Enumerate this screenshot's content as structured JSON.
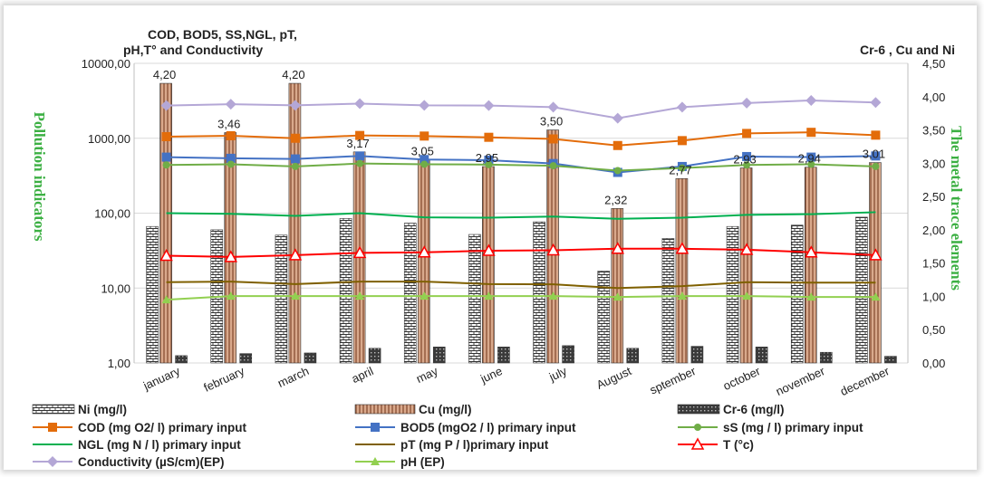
{
  "chart_data": {
    "type": "bar",
    "title_left": "COD, BOD5, SS,NGL, pT, pH,T° and Conductivity",
    "title_right": "Cr-6 , Cu and Ni",
    "ylabel_left": "Pollution indicators",
    "ylabel_right": "The metal trace elements",
    "left_axis": {
      "scale": "log",
      "ylim": [
        1,
        10000
      ],
      "ticks": [
        "1,00",
        "10,00",
        "100,00",
        "1000,00",
        "10000,00"
      ]
    },
    "right_axis": {
      "scale": "linear",
      "ylim": [
        0,
        4.5
      ],
      "ticks": [
        "0,00",
        "0,50",
        "1,00",
        "1,50",
        "2,00",
        "2,50",
        "3,00",
        "3,50",
        "4,00",
        "4,50"
      ]
    },
    "categories": [
      "january",
      "february",
      "march",
      "april",
      "may",
      "june",
      "july",
      "August",
      "sptember",
      "october",
      "november",
      "december"
    ],
    "bar_series": [
      {
        "name": "Ni (mg/l)",
        "values": [
          2.05,
          2.0,
          1.92,
          2.17,
          2.1,
          1.93,
          2.12,
          1.38,
          1.87,
          2.05,
          2.07,
          2.19
        ],
        "color": "#ffffff",
        "pattern": "brick"
      },
      {
        "name": "Cu (mg/l)",
        "values": [
          4.2,
          3.46,
          4.2,
          3.17,
          3.05,
          2.95,
          3.5,
          2.32,
          2.77,
          2.93,
          2.94,
          3.01
        ],
        "color": "#d9a98c",
        "pattern": "vstripe",
        "labels": [
          "4,20",
          "3,46",
          "4,20",
          "3,17",
          "3,05",
          "2,95",
          "3,50",
          "2,32",
          "2,77",
          "2,93",
          "2,94",
          "3,01"
        ]
      },
      {
        "name": "Cr-6 (mg/l)",
        "values": [
          0.11,
          0.14,
          0.15,
          0.22,
          0.24,
          0.24,
          0.26,
          0.22,
          0.25,
          0.24,
          0.16,
          0.1
        ],
        "color": "#444444",
        "pattern": "dots"
      }
    ],
    "line_series": [
      {
        "name": "COD (mg O2/ l) primary input",
        "values": [
          1050,
          1080,
          1000,
          1090,
          1070,
          1030,
          980,
          800,
          930,
          1160,
          1200,
          1100
        ],
        "color": "#e36c0a",
        "marker": "square"
      },
      {
        "name": "BOD5 (mgO2 / l) primary input",
        "values": [
          560,
          540,
          530,
          580,
          520,
          510,
          460,
          350,
          420,
          570,
          560,
          580
        ],
        "color": "#4472c4",
        "marker": "square"
      },
      {
        "name": "sS (mg / l) primary input",
        "values": [
          440,
          450,
          420,
          460,
          450,
          445,
          430,
          370,
          400,
          440,
          450,
          420
        ],
        "color": "#70ad47",
        "marker": "circle"
      },
      {
        "name": "NGL (mg N / l) primary input",
        "values": [
          100,
          98,
          92,
          100,
          88,
          87,
          90,
          84,
          87,
          95,
          97,
          103
        ],
        "color": "#00b050",
        "marker": "none"
      },
      {
        "name": "pT (mg P / l)primary input",
        "values": [
          12,
          12.2,
          11.3,
          12.2,
          12.2,
          11.3,
          11.2,
          10,
          10.6,
          12,
          11.8,
          11.8
        ],
        "color": "#7f6000",
        "marker": "none"
      },
      {
        "name": "T (°c)",
        "values": [
          27,
          26,
          27.5,
          29.5,
          30,
          31.5,
          32,
          33.5,
          33.5,
          32.5,
          30,
          27.5
        ],
        "color": "#ff0000",
        "marker": "triangle-open"
      },
      {
        "name": "Conductivity (µS/cm)(EP)",
        "values": [
          2730,
          2850,
          2750,
          2900,
          2750,
          2730,
          2600,
          1850,
          2600,
          2950,
          3200,
          3000
        ],
        "color": "#b4a7d6",
        "marker": "diamond"
      },
      {
        "name": "pH (EP)",
        "values": [
          7.0,
          7.8,
          7.8,
          7.8,
          7.8,
          7.8,
          7.8,
          7.6,
          7.8,
          7.8,
          7.6,
          7.6
        ],
        "color": "#92d050",
        "marker": "triangle"
      }
    ],
    "grid": true,
    "legend_position": "bottom"
  }
}
